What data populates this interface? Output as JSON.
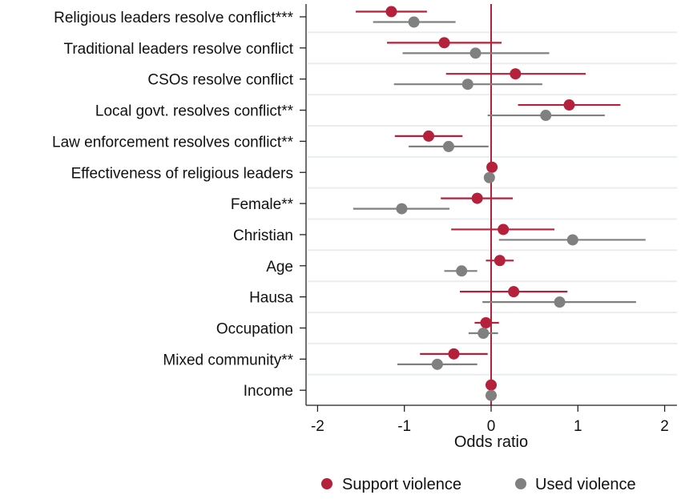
{
  "chart_data": {
    "type": "scatter",
    "subtype": "coefficient-plot",
    "title": "",
    "xlabel": "Odds ratio",
    "ylabel": "",
    "xlim": [
      -2.15,
      2.15
    ],
    "xticks": [
      -2,
      -1,
      0,
      1,
      2
    ],
    "xtick_labels": [
      "-2",
      "-1",
      "0",
      "1",
      "2"
    ],
    "reference_line": 0,
    "grid": "horizontal",
    "legend_position": "bottom",
    "categories": [
      "Religious leaders resolve conflict***",
      "Traditional leaders resolve conflict",
      "CSOs resolve conflict",
      "Local govt. resolves conflict**",
      "Law enforcement resolves conflict**",
      "Effectiveness of religious leaders",
      "Female**",
      "Christian",
      "Age",
      "Hausa",
      "Occupation",
      "Mixed community**",
      "Income"
    ],
    "series": [
      {
        "name": "Support violence",
        "color": "#b5203a",
        "estimates": [
          -1.15,
          -0.54,
          0.28,
          0.9,
          -0.72,
          0.01,
          -0.16,
          0.14,
          0.1,
          0.26,
          -0.06,
          -0.43,
          0.0
        ],
        "ci_low": [
          -1.56,
          -1.2,
          -0.52,
          0.31,
          -1.11,
          0.01,
          -0.58,
          -0.46,
          -0.06,
          -0.36,
          -0.19,
          -0.82,
          0.0
        ],
        "ci_high": [
          -0.74,
          0.12,
          1.09,
          1.49,
          -0.33,
          0.01,
          0.25,
          0.73,
          0.26,
          0.88,
          0.09,
          -0.04,
          0.0
        ]
      },
      {
        "name": "Used violence",
        "color": "#808080",
        "estimates": [
          -0.89,
          -0.18,
          -0.27,
          0.63,
          -0.49,
          -0.02,
          -1.03,
          0.94,
          -0.34,
          0.79,
          -0.09,
          -0.62,
          0.0
        ],
        "ci_low": [
          -1.36,
          -1.02,
          -1.12,
          -0.04,
          -0.95,
          -0.02,
          -1.59,
          0.09,
          -0.54,
          -0.1,
          -0.26,
          -1.08,
          0.0
        ],
        "ci_high": [
          -0.41,
          0.67,
          0.59,
          1.31,
          -0.03,
          -0.02,
          -0.48,
          1.78,
          -0.16,
          1.67,
          0.08,
          -0.16,
          0.0
        ]
      }
    ],
    "reference_line_color": "#b5203a",
    "gridline_color": "#e8eef0"
  }
}
